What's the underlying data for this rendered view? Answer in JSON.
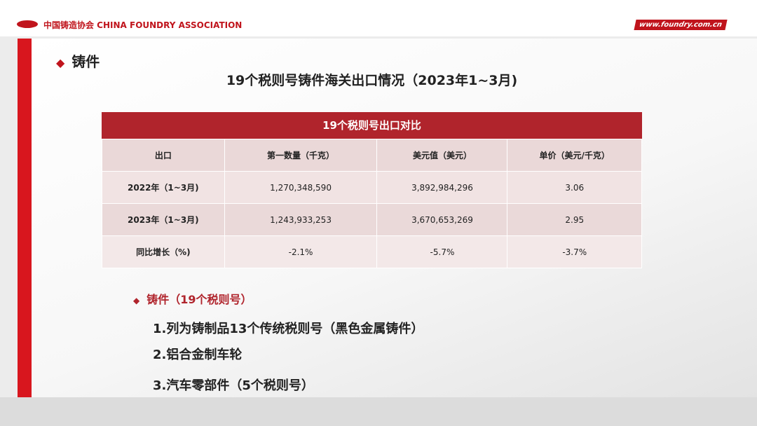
{
  "header": {
    "organization": "中国铸造协会 CHINA FOUNDRY ASSOCIATION",
    "website": "www.foundry.com.cn"
  },
  "section": "铸件",
  "title": "19个税则号铸件海关出口情况（2023年1~3月)",
  "table": {
    "caption": "19个税则号出口对比",
    "header": [
      "出口",
      "第一数量（千克）",
      "美元值（美元）",
      "单价（美元/千克）"
    ],
    "rows": [
      [
        "2022年（1~3月)",
        "1,270,348,590",
        "3,892,984,296",
        "3.06"
      ],
      [
        "2023年（1~3月)",
        "1,243,933,253",
        "3,670,653,269",
        "2.95"
      ],
      [
        "同比增长（%)",
        "-2.1%",
        "-5.7%",
        "-3.7%"
      ]
    ]
  },
  "bullet": "铸件（19个税则号）",
  "items": [
    "1.列为铸制品13个传统税则号（黑色金属铸件）",
    "2.铝合金制车轮",
    "3.汽车零部件（5个税则号）"
  ]
}
